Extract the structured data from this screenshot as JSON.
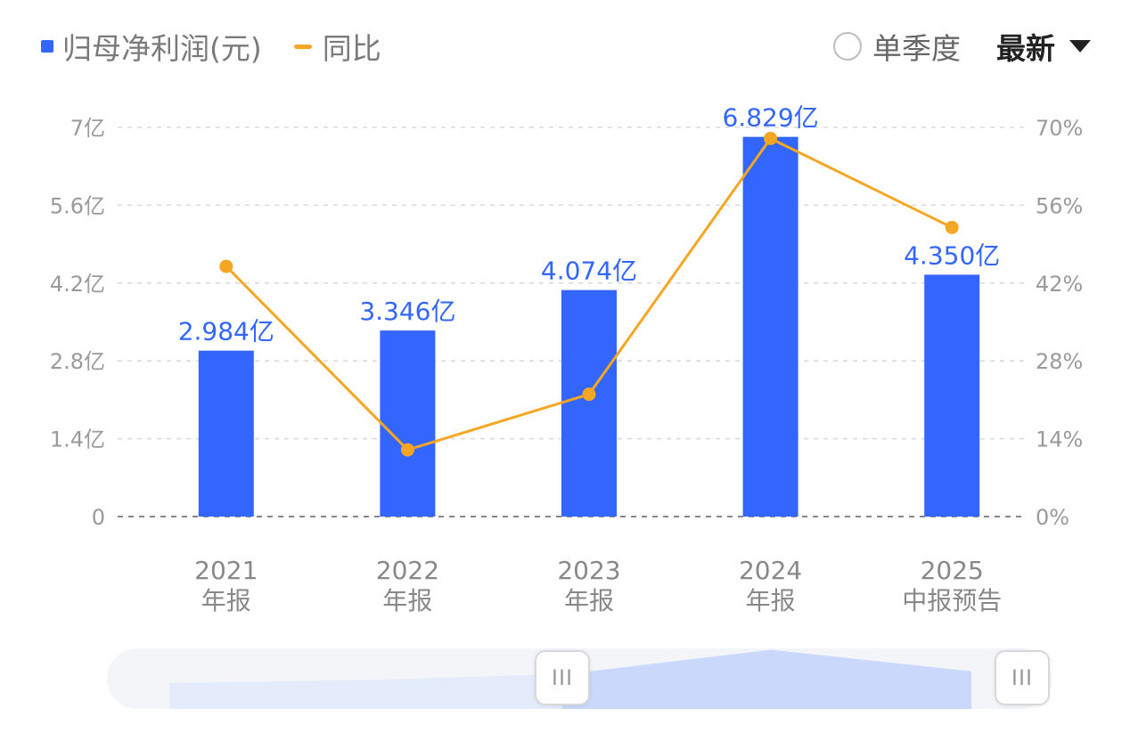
{
  "legend": {
    "bar_label": "归母净利润(元)",
    "line_label": "同比"
  },
  "controls": {
    "single_quarter": "单季度",
    "latest": "最新"
  },
  "colors": {
    "bar": "#3366ff",
    "line": "#f5a623",
    "slider_fill": "#c9d8fb",
    "slider_track": "#f3f5f8"
  },
  "slider": {
    "left_grip": "III",
    "right_grip": "III"
  },
  "chart_data": {
    "type": "bar",
    "categories": [
      [
        "2021",
        "年报"
      ],
      [
        "2022",
        "年报"
      ],
      [
        "2023",
        "年报"
      ],
      [
        "2024",
        "年报"
      ],
      [
        "2025",
        "中报预告"
      ]
    ],
    "series": [
      {
        "name": "归母净利润(元)",
        "type": "bar",
        "axis": "left",
        "values": [
          2.984,
          3.346,
          4.074,
          6.829,
          4.35
        ],
        "labels": [
          "2.984亿",
          "3.346亿",
          "4.074亿",
          "6.829亿",
          "4.350亿"
        ]
      },
      {
        "name": "同比",
        "type": "line",
        "axis": "right",
        "values": [
          45,
          12,
          22,
          68,
          52
        ]
      }
    ],
    "left_axis": {
      "min": 0,
      "max": 7,
      "ticks": [
        "0",
        "1.4亿",
        "2.8亿",
        "4.2亿",
        "5.6亿",
        "7亿"
      ]
    },
    "right_axis": {
      "min": 0,
      "max": 70,
      "ticks": [
        "0%",
        "14%",
        "28%",
        "42%",
        "56%",
        "70%"
      ]
    },
    "grid": "dashed-horizontal",
    "legend_position": "top-left"
  }
}
